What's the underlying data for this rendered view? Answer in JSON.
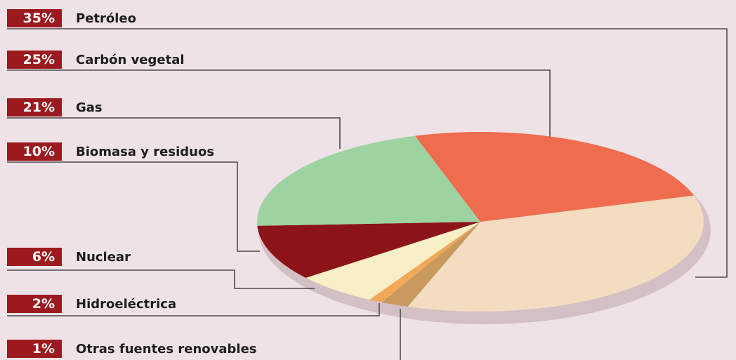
{
  "chart_data": {
    "type": "pie",
    "slices": [
      {
        "label": "Petróleo",
        "percent_label": "35%",
        "value": 35,
        "color": "#f3dcc0"
      },
      {
        "label": "Carbón vegetal",
        "percent_label": "25%",
        "value": 25,
        "color": "#ef6c4f"
      },
      {
        "label": "Gas",
        "percent_label": "21%",
        "value": 21,
        "color": "#9dd3a1"
      },
      {
        "label": "Biomasa y residuos",
        "percent_label": "10%",
        "value": 10,
        "color": "#8c1418"
      },
      {
        "label": "Nuclear",
        "percent_label": "6%",
        "value": 6,
        "color": "#f8efc6"
      },
      {
        "label": "Hidroeléctrica",
        "percent_label": "2%",
        "value": 2,
        "color": "#c89a5e"
      },
      {
        "label": "Otras fuentes renovables",
        "percent_label": "1%",
        "value": 1,
        "color": "#f2a85a"
      }
    ],
    "badge_color": "#9b1a1f"
  }
}
